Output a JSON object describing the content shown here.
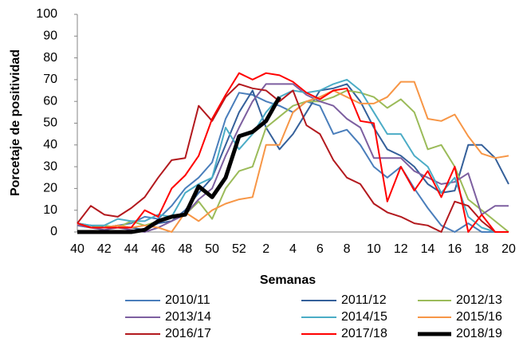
{
  "chart_data": {
    "type": "line",
    "x_label": "Semanas",
    "y_label": "Porcetaje de positividad",
    "categories": [
      "40",
      null,
      "42",
      null,
      "44",
      null,
      "46",
      null,
      "48",
      null,
      "50",
      null,
      "52",
      null,
      "2",
      null,
      "4",
      null,
      "6",
      null,
      "8",
      null,
      "10",
      null,
      "12",
      null,
      "14",
      null,
      "16",
      null,
      "18",
      null,
      "20"
    ],
    "ylim": [
      0,
      100
    ],
    "yticks": [
      0,
      10,
      20,
      30,
      40,
      50,
      60,
      70,
      80,
      90,
      100
    ],
    "grid": false,
    "legend": "bottom",
    "series": [
      {
        "name": "2010/11",
        "color": "#4a7ebb",
        "values": [
          3,
          3,
          2,
          3,
          4,
          7,
          6,
          12,
          20,
          25,
          32,
          52,
          64,
          63,
          60,
          58,
          55,
          60,
          58,
          45,
          47,
          40,
          30,
          25,
          30,
          20,
          11,
          3,
          0,
          4,
          0,
          0,
          0
        ]
      },
      {
        "name": "2011/12",
        "color": "#35609a",
        "values": [
          4,
          3,
          2,
          3,
          2,
          1,
          4,
          5,
          10,
          18,
          25,
          40,
          55,
          65,
          48,
          38,
          45,
          55,
          65,
          66,
          68,
          60,
          48,
          38,
          35,
          30,
          22,
          18,
          19,
          40,
          40,
          34,
          22
        ]
      },
      {
        "name": "2012/13",
        "color": "#9bbb59",
        "values": [
          3,
          2,
          3,
          2,
          5,
          3,
          5,
          7,
          8,
          14,
          6,
          20,
          28,
          30,
          48,
          53,
          58,
          60,
          60,
          62,
          65,
          64,
          62,
          57,
          61,
          55,
          38,
          40,
          30,
          15,
          10,
          5,
          0
        ]
      },
      {
        "name": "2013/14",
        "color": "#7d5fa0",
        "values": [
          3,
          2,
          1,
          2,
          1,
          0,
          2,
          5,
          8,
          15,
          20,
          35,
          48,
          60,
          68,
          68,
          68,
          63,
          60,
          58,
          52,
          48,
          34,
          34,
          34,
          28,
          25,
          22,
          23,
          27,
          8,
          12,
          12
        ]
      },
      {
        "name": "2014/15",
        "color": "#4bacc6",
        "values": [
          4,
          3,
          3,
          6,
          5,
          5,
          8,
          7,
          18,
          22,
          25,
          48,
          38,
          45,
          55,
          62,
          65,
          64,
          65,
          68,
          70,
          65,
          55,
          45,
          45,
          35,
          30,
          18,
          25,
          7,
          2,
          0,
          0
        ]
      },
      {
        "name": "2015/16",
        "color": "#f79646",
        "values": [
          4,
          2,
          2,
          3,
          2,
          3,
          2,
          0,
          9,
          5,
          10,
          13,
          15,
          16,
          40,
          40,
          55,
          60,
          62,
          65,
          62,
          59,
          59,
          62,
          69,
          69,
          52,
          51,
          54,
          44,
          36,
          34,
          35
        ]
      },
      {
        "name": "2016/17",
        "color": "#b3191e",
        "values": [
          4,
          12,
          8,
          7,
          11,
          16,
          25,
          33,
          34,
          58,
          51,
          62,
          68,
          66,
          65,
          60,
          65,
          49,
          45,
          33,
          25,
          22,
          13,
          9,
          7,
          4,
          3,
          0,
          14,
          12,
          5,
          0,
          0
        ]
      },
      {
        "name": "2017/18",
        "color": "#ff0000",
        "values": [
          4,
          2,
          2,
          2,
          2,
          10,
          7,
          20,
          26,
          35,
          52,
          63,
          73,
          70,
          73,
          72,
          69,
          64,
          61,
          65,
          66,
          51,
          50,
          14,
          30,
          19,
          28,
          16,
          30,
          0,
          8,
          0,
          0
        ]
      },
      {
        "name": "2018/19",
        "color": "#000000",
        "values": [
          0,
          0,
          0,
          0,
          0,
          1,
          5,
          7,
          8,
          21,
          16,
          25,
          44,
          46,
          51,
          62,
          null,
          null,
          null,
          null,
          null,
          null,
          null,
          null,
          null,
          null,
          null,
          null,
          null,
          null,
          null,
          null,
          null
        ]
      }
    ]
  }
}
